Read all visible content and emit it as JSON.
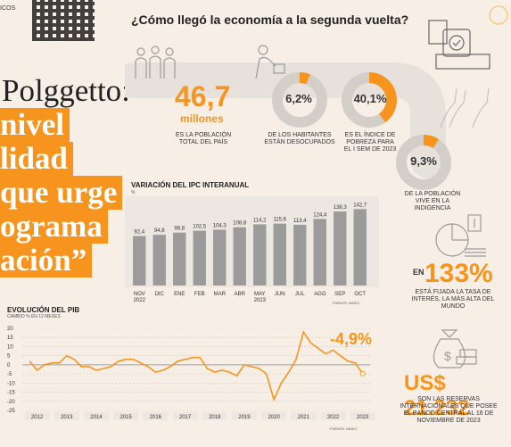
{
  "header": {
    "corner_text": "ICOS",
    "title": "¿Cómo llegó la economía a la segunda vuelta?"
  },
  "headline": {
    "line1": "Polggetto:",
    "line2": "nivel",
    "line3": "lidad",
    "line4": "que urge",
    "line5": "ograma",
    "line6": "ación”"
  },
  "stats": {
    "population": {
      "value": "46,7",
      "unit": "millones",
      "caption": "ES LA POBLACIÓN TOTAL DEL PAÍS"
    },
    "unemployment": {
      "value": "6,2%",
      "pct": 6.2,
      "caption": "DE LOS HABITANTES ESTÁN DESOCUPADOS"
    },
    "poverty": {
      "value": "40,1%",
      "pct": 40.1,
      "caption": "ES EL ÍNDICE DE POBREZA PARA EL I SEM DE 2023"
    },
    "indigence": {
      "value": "9,3%",
      "pct": 9.3,
      "caption": "DE LA POBLACIÓN VIVE EN LA INDIGENCIA"
    },
    "interest": {
      "value": "133%",
      "caption": "ESTÁ FIJADA LA TASA DE INTERÉS, LA MÁS ALTA DEL MUNDO",
      "prefix": "EN"
    },
    "reserves": {
      "value": "US$ 21.232",
      "caption": "SON LAS RESERVAS INTERNACIONALES QUE POSEE EL BANCO CENTRAL AL 16 DE NOVIEMBRE DE 2023"
    }
  },
  "colors": {
    "accent": "#f7941d",
    "bar": "#9b9b9b",
    "line": "#f7941d",
    "ring": "#d3cec8"
  },
  "chart_data": [
    {
      "type": "bar",
      "title": "VARIACIÓN DEL IPC INTERANUAL",
      "ylabel": "%",
      "categories": [
        "NOV",
        "DIC",
        "ENE",
        "FEB",
        "MAR",
        "ABR",
        "MAY",
        "JUN",
        "JUL",
        "AGO",
        "SEP",
        "OCT"
      ],
      "year_labels": {
        "NOV": "2022",
        "MAY": "2023"
      },
      "values": [
        92.4,
        94.8,
        98.8,
        102.5,
        104.3,
        108.8,
        114.2,
        115.6,
        113.4,
        124.4,
        138.3,
        142.7
      ],
      "value_labels": [
        "92,4",
        "94,8",
        "98,8",
        "102,5",
        "104,3",
        "108,8",
        "114,2",
        "115,6",
        "113,4",
        "124,4",
        "138,3",
        "142,7"
      ],
      "ylim": [
        0,
        150
      ],
      "source": "FUENTE: INDEC"
    },
    {
      "type": "line",
      "title": "EVOLUCIÓN DEL PIB",
      "subtitle": "CAMBIO % EN 12 MESES",
      "x_labels": [
        "2012",
        "2013",
        "2014",
        "2015",
        "2016",
        "2017",
        "2018",
        "2019",
        "2020",
        "2021",
        "2022",
        "2023"
      ],
      "y_ticks": [
        20,
        15,
        10,
        5,
        0,
        -5,
        -10,
        -15,
        -20,
        -25
      ],
      "ylim": [
        -25,
        20
      ],
      "last_value_label": "-4,9%",
      "x": [
        2012.0,
        2012.25,
        2012.5,
        2012.75,
        2013.0,
        2013.25,
        2013.5,
        2013.75,
        2014.0,
        2014.25,
        2014.5,
        2014.75,
        2015.0,
        2015.25,
        2015.5,
        2015.75,
        2016.0,
        2016.25,
        2016.5,
        2016.75,
        2017.0,
        2017.25,
        2017.5,
        2017.75,
        2018.0,
        2018.25,
        2018.5,
        2018.75,
        2019.0,
        2019.25,
        2019.5,
        2019.75,
        2020.0,
        2020.25,
        2020.5,
        2020.75,
        2021.0,
        2021.25,
        2021.5,
        2021.75,
        2022.0,
        2022.25,
        2022.5,
        2022.75,
        2023.0,
        2023.25
      ],
      "y": [
        2,
        -3,
        0,
        1,
        1,
        5,
        3,
        -1,
        -1,
        -3,
        -2,
        -1,
        2,
        3,
        3,
        1,
        -1,
        -4,
        -3,
        -1,
        2,
        3,
        4,
        4,
        -2,
        -4,
        -3,
        -4,
        -6,
        0,
        -1,
        -2,
        -5,
        -19,
        -10,
        -4,
        3,
        18,
        12,
        9,
        6,
        8,
        5,
        2,
        1,
        -4.9
      ],
      "source": "FUENTE: INDEC"
    }
  ]
}
